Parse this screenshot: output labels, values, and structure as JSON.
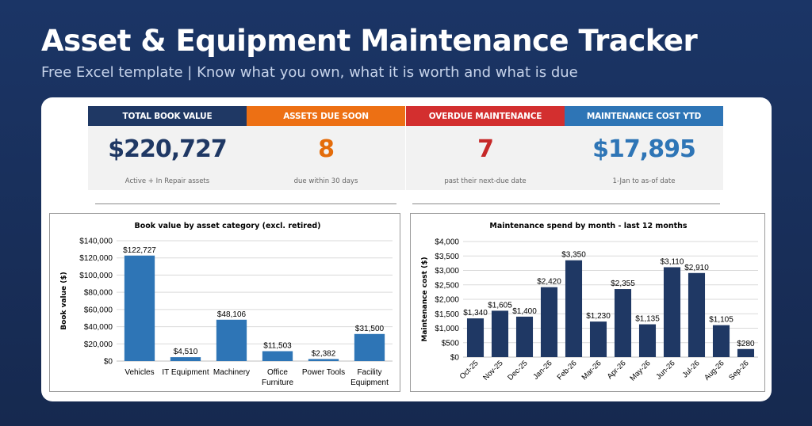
{
  "header": {
    "title": "Asset & Equipment Maintenance Tracker",
    "subtitle": "Free Excel template  |  Know what you own, what it is worth and what is due"
  },
  "kpis": [
    {
      "label": "TOTAL BOOK VALUE",
      "value": "$220,727",
      "note": "Active + In Repair assets",
      "head_color": "#1f3864",
      "value_color": "#1f3864"
    },
    {
      "label": "ASSETS DUE SOON",
      "value": "8",
      "note": "due within 30 days",
      "head_color": "#ed7014",
      "value_color": "#e46c0a"
    },
    {
      "label": "OVERDUE MAINTENANCE",
      "value": "7",
      "note": "past their next-due date",
      "head_color": "#d32f2f",
      "value_color": "#c62828"
    },
    {
      "label": "MAINTENANCE COST YTD",
      "value": "$17,895",
      "note": "1-Jan to as-of date",
      "head_color": "#2e75b6",
      "value_color": "#2e75b6"
    }
  ],
  "chart_data": [
    {
      "type": "bar",
      "title": "Book value by asset category (excl. retired)",
      "xlabel": "",
      "ylabel": "Book value ($)",
      "categories": [
        "Vehicles",
        "IT Equipment",
        "Machinery",
        "Office Furniture",
        "Power Tools",
        "Facility Equipment"
      ],
      "category_lines": [
        [
          "Vehicles"
        ],
        [
          "IT Equipment"
        ],
        [
          "Machinery"
        ],
        [
          "Office",
          "Furniture"
        ],
        [
          "Power Tools"
        ],
        [
          "Facility",
          "Equipment"
        ]
      ],
      "values": [
        122727,
        4510,
        48106,
        11503,
        2382,
        31500
      ],
      "data_labels": [
        "$122,727",
        "$4,510",
        "$48,106",
        "$11,503",
        "$2,382",
        "$31,500"
      ],
      "ylim": [
        0,
        140000
      ],
      "yticks": [
        "$0",
        "$20,000",
        "$40,000",
        "$60,000",
        "$80,000",
        "$100,000",
        "$120,000",
        "$140,000"
      ],
      "bar_color": "#2e75b6",
      "grid": true
    },
    {
      "type": "bar",
      "title": "Maintenance spend by month - last 12 months",
      "xlabel": "",
      "ylabel": "Maintenance cost ($)",
      "categories": [
        "Oct-25",
        "Nov-25",
        "Dec-25",
        "Jan-26",
        "Feb-26",
        "Mar-26",
        "Apr-26",
        "May-26",
        "Jun-26",
        "Jul-26",
        "Aug-26",
        "Sep-26"
      ],
      "values": [
        1340,
        1605,
        1400,
        2420,
        3350,
        1230,
        2355,
        1135,
        3110,
        2910,
        1105,
        280
      ],
      "data_labels": [
        "$1,340",
        "$1,605",
        "$1,400",
        "$2,420",
        "$3,350",
        "$1,230",
        "$2,355",
        "$1,135",
        "$3,110",
        "$2,910",
        "$1,105",
        "$280"
      ],
      "ylim": [
        0,
        4000
      ],
      "yticks": [
        "$0",
        "$500",
        "$1,000",
        "$1,500",
        "$2,000",
        "$2,500",
        "$3,000",
        "$3,500",
        "$4,000"
      ],
      "bar_color": "#1f3864",
      "grid": true
    }
  ]
}
